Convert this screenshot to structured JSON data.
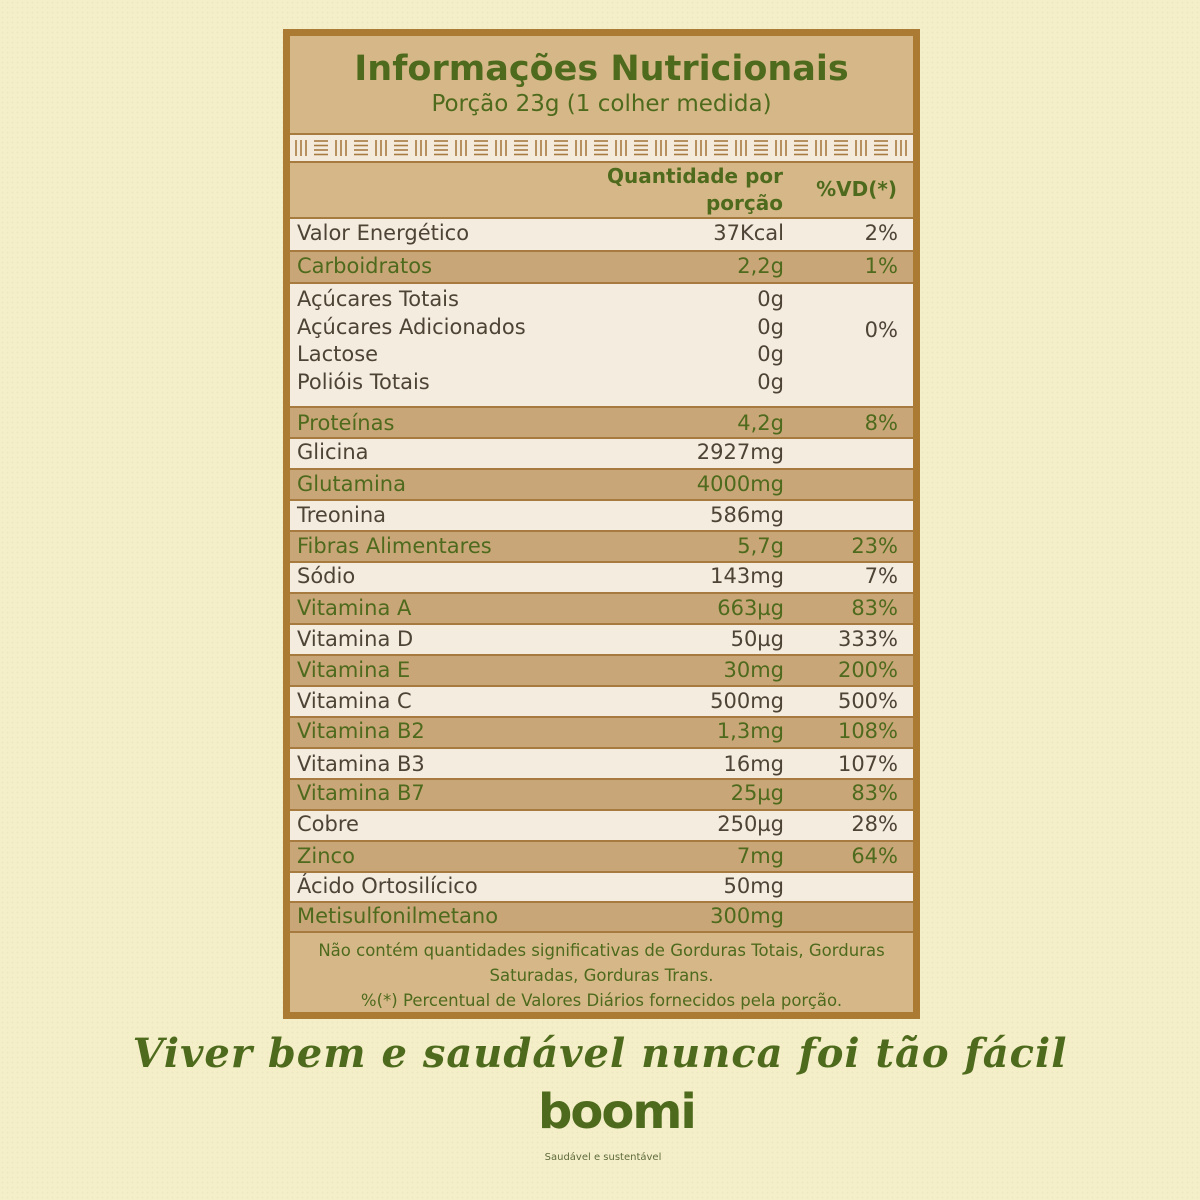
{
  "header": {
    "title": "Informações Nutricionais",
    "subtitle": "Porção 23g (1 colher medida)"
  },
  "columns": {
    "quantity_line1": "Quantidade por",
    "quantity_line2": "porção",
    "vd": "%VD(*)"
  },
  "rows": [
    {
      "name": "Valor Energético",
      "qty": "37Kcal",
      "vd": "2%"
    },
    {
      "name": "Carboidratos",
      "qty": "2,2g",
      "vd": "1%"
    },
    {
      "name": "Açúcares Totais",
      "qty": "0g",
      "vd": ""
    },
    {
      "name": "Açúcares Adicionados",
      "qty": "0g",
      "vd": "0%"
    },
    {
      "name": "Lactose",
      "qty": "0g",
      "vd": ""
    },
    {
      "name": "Polióis Totais",
      "qty": "0g",
      "vd": ""
    },
    {
      "name": "Proteínas",
      "qty": "4,2g",
      "vd": "8%"
    },
    {
      "name": "Glicina",
      "qty": "2927mg",
      "vd": ""
    },
    {
      "name": "Glutamina",
      "qty": "4000mg",
      "vd": ""
    },
    {
      "name": "Treonina",
      "qty": "586mg",
      "vd": ""
    },
    {
      "name": "Fibras Alimentares",
      "qty": "5,7g",
      "vd": "23%"
    },
    {
      "name": "Sódio",
      "qty": "143mg",
      "vd": "7%"
    },
    {
      "name": "Vitamina A",
      "qty": "663µg",
      "vd": "83%"
    },
    {
      "name": "Vitamina D",
      "qty": "50µg",
      "vd": "333%"
    },
    {
      "name": "Vitamina E",
      "qty": "30mg",
      "vd": "200%"
    },
    {
      "name": "Vitamina C",
      "qty": "500mg",
      "vd": "500%"
    },
    {
      "name": "Vitamina B2",
      "qty": "1,3mg",
      "vd": "108%"
    },
    {
      "name": "Vitamina B3",
      "qty": "16mg",
      "vd": "107%"
    },
    {
      "name": "Vitamina B7",
      "qty": "25µg",
      "vd": "83%"
    },
    {
      "name": "Cobre",
      "qty": "250µg",
      "vd": "28%"
    },
    {
      "name": "Zinco",
      "qty": "7mg",
      "vd": "64%"
    },
    {
      "name": "Ácido Ortosilícico",
      "qty": "50mg",
      "vd": ""
    },
    {
      "name": "Metisulfonilmetano",
      "qty": "300mg",
      "vd": ""
    }
  ],
  "footer": {
    "line1": "Não contém quantidades significativas de Gorduras Totais, Gorduras",
    "line2": "Saturadas, Gorduras Trans.",
    "line3": "%(*) Percentual de Valores Diários fornecidos pela porção."
  },
  "slogan": "Viver bem e saudável nunca foi tão fácil",
  "brand": {
    "logo": "boomi",
    "tagline": "Saudável e sustentável"
  },
  "colors": {
    "background": "#f4efc9",
    "panel": "#d6b888",
    "border": "#ac7b33",
    "green": "#4e6a1c",
    "row_light": "#f4ecdf",
    "row_dark": "#c9a678"
  }
}
